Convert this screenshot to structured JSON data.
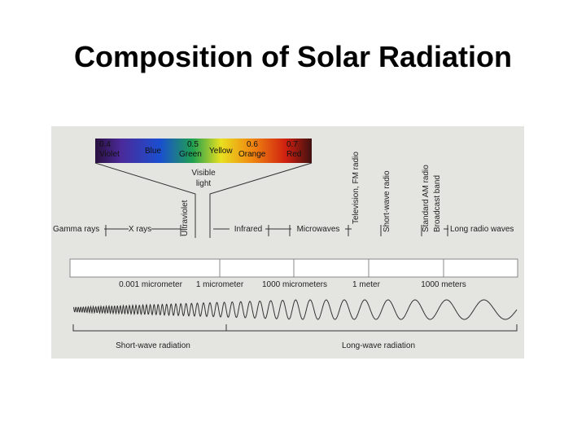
{
  "title": "Composition of Solar Radiation",
  "spectrum": {
    "labels": [
      "0.4",
      "Violet",
      "Blue",
      "0.5",
      "Green",
      "Yellow",
      "0.6",
      "Orange",
      "0.7",
      "Red"
    ],
    "visible": [
      "Visible",
      "light"
    ]
  },
  "regions": [
    "Gamma rays",
    "X rays",
    "Ultraviolet",
    "Infrared",
    "Microwaves",
    "Television, FM radio",
    "Short-wave radio",
    "Standard AM radio",
    "Broadcast band",
    "Long radio waves"
  ],
  "scale": [
    "0.001 micrometer",
    "1 micrometer",
    "1000 micrometers",
    "1 meter",
    "1000 meters"
  ],
  "radiation": [
    "Short-wave radiation",
    "Long-wave radiation"
  ]
}
